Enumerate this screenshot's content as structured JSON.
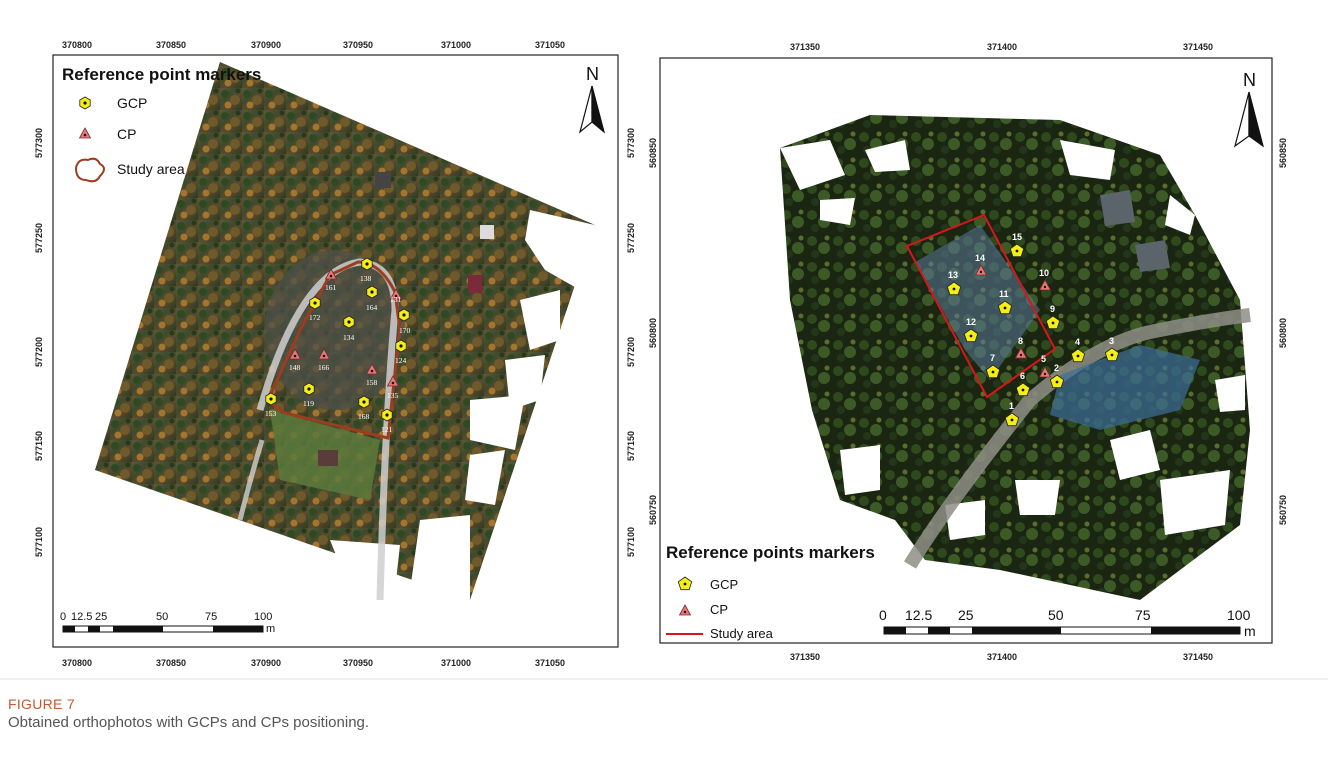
{
  "figure": {
    "label": "FIGURE 7",
    "caption": "Obtained orthophotos with GCPs and CPs positioning."
  },
  "left_map": {
    "legend": {
      "title": "Reference point markers",
      "items": [
        "GCP",
        "CP",
        "Study area"
      ]
    },
    "north": "N",
    "x_ticks": [
      "370800",
      "370850",
      "370900",
      "370950",
      "371000",
      "371050"
    ],
    "y_ticks": [
      "577300",
      "577250",
      "577200",
      "577150",
      "577100"
    ],
    "scale": {
      "labels": [
        "0",
        "12.5",
        "25",
        "50",
        "75",
        "100"
      ],
      "unit": "m"
    },
    "gcp_labels": [
      "138",
      "164",
      "172",
      "170",
      "134",
      "124",
      "119",
      "153",
      "168",
      "121"
    ],
    "cp_labels": [
      "161",
      "131",
      "148",
      "166",
      "158",
      "135"
    ]
  },
  "right_map": {
    "legend": {
      "title": "Reference points markers",
      "items": [
        "GCP",
        "CP",
        "Study area"
      ]
    },
    "north": "N",
    "x_ticks": [
      "371350",
      "371400",
      "371450"
    ],
    "y_ticks": [
      "560850",
      "560800",
      "560750"
    ],
    "scale": {
      "labels": [
        "0",
        "12.5",
        "25",
        "50",
        "75",
        "100"
      ],
      "unit": "m"
    },
    "gcp_labels": [
      "15",
      "13",
      "11",
      "12",
      "9",
      "4",
      "3",
      "7",
      "6",
      "2",
      "1"
    ],
    "cp_labels": [
      "14",
      "10",
      "8",
      "5"
    ]
  },
  "colors": {
    "gcp_fill": "#f4ee16",
    "cp_fill": "#e8777a",
    "study_area_left": "#9b3d1e",
    "study_area_right": "#d8161a",
    "caption_label": "#c8562e"
  }
}
